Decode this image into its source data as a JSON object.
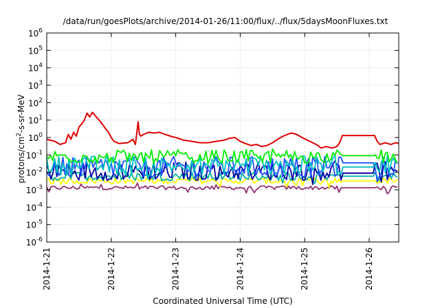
{
  "chart_data": {
    "type": "line",
    "title": "/data/run/goesPlots/archive/2014-01-26/11:00/flux/../flux/5daysMoonFluxes.txt",
    "xlabel": "Coordinated Universal Time (UTC)",
    "ylabel": {
      "base": "protons/cm",
      "sup": "2",
      "rest": "-s-sr-MeV"
    },
    "yscale": "log",
    "ylim_exp": [
      -6,
      6
    ],
    "ytick_exponents": [
      -6,
      -5,
      -4,
      -3,
      -2,
      -1,
      0,
      1,
      2,
      3,
      4,
      5,
      6
    ],
    "ytick_base": "10",
    "xlim": [
      "2014-01-21 00:00",
      "2014-01-26 11:00"
    ],
    "xticks": [
      {
        "x": "2014-01-21 00:00",
        "label": "2014-1-21"
      },
      {
        "x": "2014-01-22 00:00",
        "label": "2014-1-22"
      },
      {
        "x": "2014-01-23 00:00",
        "label": "2014-1-23"
      },
      {
        "x": "2014-01-24 00:00",
        "label": "2014-1-24"
      },
      {
        "x": "2014-01-25 00:00",
        "label": "2014-1-25"
      },
      {
        "x": "2014-01-26 00:00",
        "label": "2014-1-26"
      }
    ],
    "grid": true,
    "legend": "none",
    "series": [
      {
        "color": "#e00000",
        "points": [
          [
            "2014-01-21 00:00",
            0.8
          ],
          [
            "2014-01-21 03:00",
            0.6
          ],
          [
            "2014-01-21 05:00",
            0.4
          ],
          [
            "2014-01-21 07:00",
            0.5
          ],
          [
            "2014-01-21 08:00",
            1.5
          ],
          [
            "2014-01-21 09:00",
            0.8
          ],
          [
            "2014-01-21 10:00",
            2.0
          ],
          [
            "2014-01-21 11:00",
            1.2
          ],
          [
            "2014-01-21 12:00",
            4.0
          ],
          [
            "2014-01-21 13:00",
            6.0
          ],
          [
            "2014-01-21 14:00",
            10
          ],
          [
            "2014-01-21 15:00",
            25
          ],
          [
            "2014-01-21 16:00",
            15
          ],
          [
            "2014-01-21 17:00",
            28
          ],
          [
            "2014-01-21 18:00",
            18
          ],
          [
            "2014-01-21 19:00",
            12
          ],
          [
            "2014-01-21 20:00",
            8
          ],
          [
            "2014-01-21 21:00",
            5
          ],
          [
            "2014-01-21 22:00",
            3
          ],
          [
            "2014-01-21 23:00",
            2
          ],
          [
            "2014-01-22 00:00",
            1.0
          ],
          [
            "2014-01-22 01:00",
            0.6
          ],
          [
            "2014-01-22 03:00",
            0.45
          ],
          [
            "2014-01-22 06:00",
            0.5
          ],
          [
            "2014-01-22 07:00",
            0.6
          ],
          [
            "2014-01-22 08:00",
            0.8
          ],
          [
            "2014-01-22 09:00",
            0.4
          ],
          [
            "2014-01-22 10:00",
            8
          ],
          [
            "2014-01-22 10:30",
            1.5
          ],
          [
            "2014-01-22 11:00",
            1.2
          ],
          [
            "2014-01-22 12:00",
            1.5
          ],
          [
            "2014-01-22 14:00",
            2.0
          ],
          [
            "2014-01-22 16:00",
            1.8
          ],
          [
            "2014-01-22 18:00",
            2.0
          ],
          [
            "2014-01-22 20:00",
            1.5
          ],
          [
            "2014-01-22 22:00",
            1.2
          ],
          [
            "2014-01-23 00:00",
            1.0
          ],
          [
            "2014-01-23 03:00",
            0.7
          ],
          [
            "2014-01-23 06:00",
            0.6
          ],
          [
            "2014-01-23 09:00",
            0.5
          ],
          [
            "2014-01-23 12:00",
            0.5
          ],
          [
            "2014-01-23 15:00",
            0.6
          ],
          [
            "2014-01-23 18:00",
            0.7
          ],
          [
            "2014-01-23 20:00",
            0.9
          ],
          [
            "2014-01-23 22:00",
            1.0
          ],
          [
            "2014-01-24 00:00",
            0.6
          ],
          [
            "2014-01-24 02:00",
            0.45
          ],
          [
            "2014-01-24 04:00",
            0.35
          ],
          [
            "2014-01-24 06:00",
            0.4
          ],
          [
            "2014-01-24 08:00",
            0.3
          ],
          [
            "2014-01-24 10:00",
            0.35
          ],
          [
            "2014-01-24 12:00",
            0.5
          ],
          [
            "2014-01-24 14:00",
            0.8
          ],
          [
            "2014-01-24 16:00",
            1.2
          ],
          [
            "2014-01-24 18:00",
            1.6
          ],
          [
            "2014-01-24 19:00",
            1.8
          ],
          [
            "2014-01-24 21:00",
            1.5
          ],
          [
            "2014-01-24 23:00",
            1.0
          ],
          [
            "2014-01-25 01:00",
            0.7
          ],
          [
            "2014-01-25 03:00",
            0.5
          ],
          [
            "2014-01-25 05:00",
            0.35
          ],
          [
            "2014-01-25 06:00",
            0.25
          ],
          [
            "2014-01-25 08:00",
            0.3
          ],
          [
            "2014-01-25 10:00",
            0.25
          ],
          [
            "2014-01-25 12:00",
            0.3
          ],
          [
            "2014-01-25 13:00",
            0.5
          ],
          [
            "2014-01-25 14:00",
            1.3
          ],
          [
            "2014-01-25 23:00",
            1.3
          ],
          [
            "2014-01-26 00:00",
            1.3
          ],
          [
            "2014-01-26 01:00",
            1.3
          ],
          [
            "2014-01-26 02:00",
            1.3
          ],
          [
            "2014-01-26 03:00",
            0.6
          ],
          [
            "2014-01-26 04:00",
            0.4
          ],
          [
            "2014-01-26 06:00",
            0.5
          ],
          [
            "2014-01-26 08:00",
            0.4
          ],
          [
            "2014-01-26 10:00",
            0.5
          ],
          [
            "2014-01-26 11:00",
            0.45
          ]
        ]
      },
      {
        "color": "#00ee00",
        "base": 0.08,
        "jitter": 0.18,
        "flat_from": "2014-01-25 14:00",
        "flat_to": "2014-01-26 02:00",
        "flat": 0.09
      },
      {
        "color": "#00c0c0",
        "base": 0.025,
        "jitter": 0.25,
        "flat_from": "2014-01-25 14:00",
        "flat_to": "2014-01-26 02:00",
        "flat": 0.02
      },
      {
        "color": "#2050ff",
        "base": 0.02,
        "jitter": 0.28,
        "flat_from": "2014-01-25 14:00",
        "flat_to": "2014-01-26 02:00",
        "flat": 0.035
      },
      {
        "color": "#0000a0",
        "base": 0.012,
        "jitter": 0.25,
        "flat_from": "2014-01-25 14:00",
        "flat_to": "2014-01-26 02:00",
        "flat": 0.009
      },
      {
        "color": "#00b0a0",
        "base": 0.006,
        "jitter": 0.12,
        "flat_from": "2014-01-25 14:00",
        "flat_to": "2014-01-26 02:00",
        "flat": 0.006
      },
      {
        "color": "#ffff00",
        "base": 0.0032,
        "jitter": 0.08,
        "flat_from": "2014-01-25 14:00",
        "flat_to": "2014-01-26 02:00",
        "flat": 0.0032
      },
      {
        "color": "#903070",
        "base": 0.0013,
        "jitter": 0.05,
        "flat_from": "2014-01-25 14:00",
        "flat_to": "2014-01-26 02:00",
        "flat": 0.0013
      }
    ]
  }
}
